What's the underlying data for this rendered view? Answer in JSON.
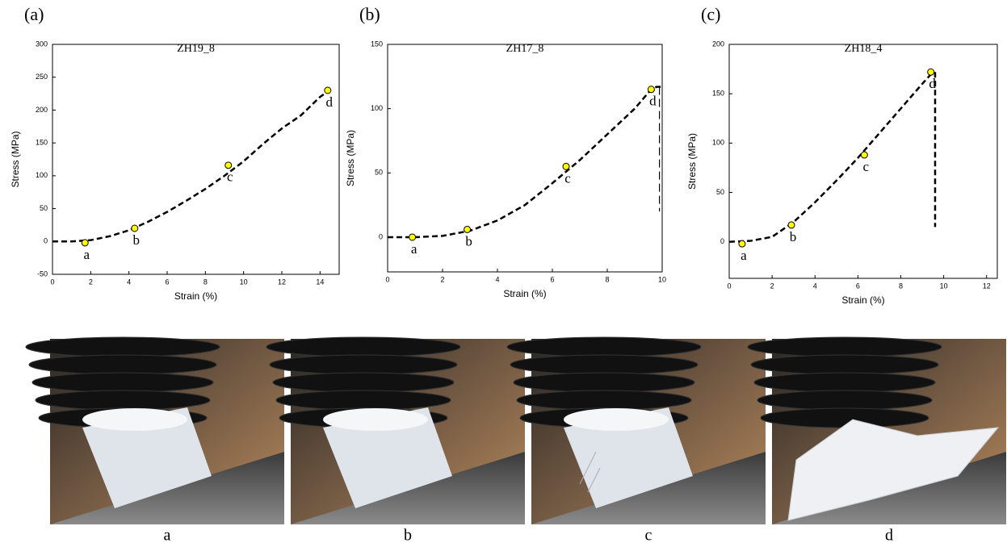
{
  "chart_data": [
    {
      "type": "line",
      "panel_label": "(a)",
      "title": "ZH19_8",
      "xlabel": "Strain (%)",
      "ylabel": "Stress (MPa)",
      "xlim": [
        0,
        15
      ],
      "xticks": [
        0,
        2,
        4,
        6,
        8,
        10,
        12,
        14
      ],
      "ylim": [
        -50,
        300
      ],
      "yticks": [
        -50,
        0,
        50,
        100,
        150,
        200,
        250,
        300
      ],
      "series": [
        {
          "style": "dashed",
          "color": "#000000",
          "x": [
            0,
            1,
            2,
            3,
            4,
            5,
            6,
            7,
            8,
            9,
            10,
            11,
            12,
            13,
            14,
            14.5
          ],
          "values": [
            0,
            0,
            2,
            8,
            17,
            30,
            45,
            62,
            80,
            100,
            122,
            148,
            172,
            192,
            220,
            230
          ]
        },
        {
          "style": "markers",
          "color": "#ffff00",
          "x": [
            1.7,
            4.3,
            9.2,
            14.4
          ],
          "values": [
            -2,
            20,
            116,
            230
          ],
          "labels": [
            "a",
            "b",
            "c",
            "d"
          ]
        }
      ]
    },
    {
      "type": "line",
      "panel_label": "(b)",
      "title": "ZH17_8",
      "xlabel": "Strain (%)",
      "ylabel": "Stress (MPa)",
      "xlim": [
        0,
        10
      ],
      "xticks": [
        0,
        2,
        4,
        6,
        8,
        10
      ],
      "ylim": [
        -27,
        150
      ],
      "yticks": [
        0,
        50,
        100,
        150
      ],
      "series": [
        {
          "style": "dashed",
          "color": "#000000",
          "x": [
            0,
            1,
            2,
            3,
            4,
            5,
            6,
            7,
            8,
            9,
            9.6,
            9.8,
            10
          ],
          "values": [
            0,
            0,
            1,
            5,
            13,
            25,
            42,
            60,
            80,
            100,
            115,
            117,
            117
          ]
        },
        {
          "style": "dashed-thin",
          "color": "#000000",
          "x": [
            9.9,
            9.9
          ],
          "values": [
            117,
            20
          ]
        },
        {
          "style": "markers",
          "color": "#ffff00",
          "x": [
            0.9,
            2.9,
            6.5,
            9.6
          ],
          "values": [
            0,
            6,
            55,
            115
          ],
          "labels": [
            "a",
            "b",
            "c",
            "d"
          ]
        }
      ]
    },
    {
      "type": "line",
      "panel_label": "(c)",
      "title": "ZH18_4",
      "xlabel": "Strain (%)",
      "ylabel": "Stress (MPa)",
      "xlim": [
        0,
        12.5
      ],
      "xticks": [
        0,
        2,
        4,
        6,
        8,
        10,
        12
      ],
      "ylim": [
        -37,
        200
      ],
      "yticks": [
        0,
        50,
        100,
        150,
        200
      ],
      "series": [
        {
          "style": "dashed",
          "color": "#000000",
          "x": [
            0,
            1,
            2,
            3,
            4,
            5,
            6,
            7,
            8,
            9,
            9.5
          ],
          "values": [
            0,
            1,
            5,
            20,
            40,
            62,
            85,
            110,
            135,
            160,
            172
          ]
        },
        {
          "style": "dashed",
          "color": "#000000",
          "x": [
            9.6,
            9.6
          ],
          "values": [
            172,
            15
          ]
        },
        {
          "style": "markers",
          "color": "#ffff00",
          "x": [
            0.6,
            2.9,
            6.3,
            9.4
          ],
          "values": [
            -2,
            17,
            88,
            172
          ],
          "labels": [
            "a",
            "b",
            "c",
            "d"
          ]
        }
      ]
    }
  ],
  "photos": {
    "labels": [
      "a",
      "b",
      "c",
      "d"
    ]
  }
}
